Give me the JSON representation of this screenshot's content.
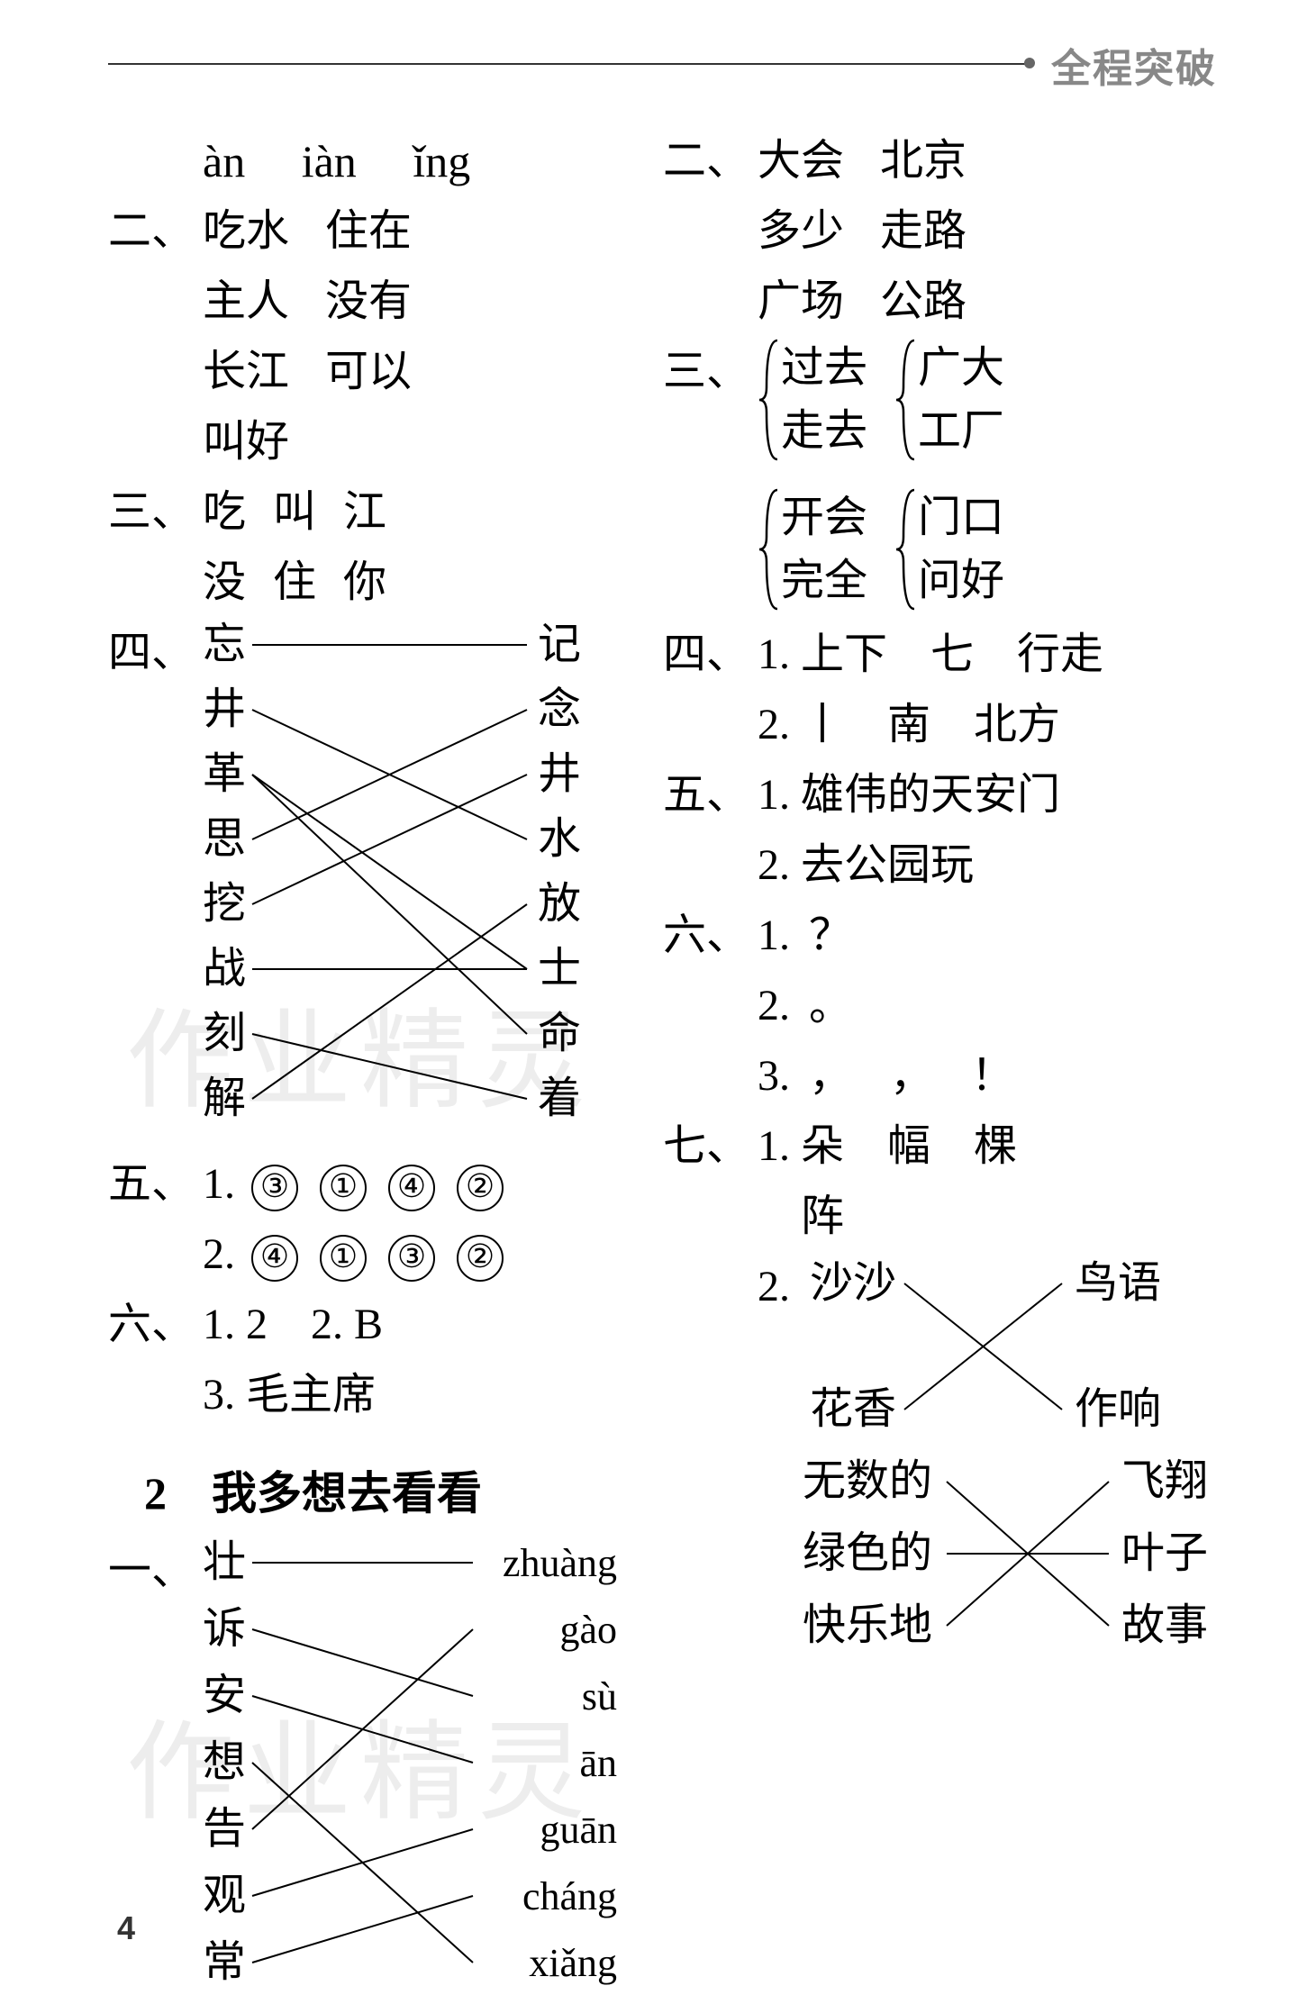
{
  "header": {
    "brand": "全程突破"
  },
  "pageNumber": "4",
  "watermark": "作业精灵",
  "left": {
    "pinyin_row": {
      "items": [
        "àn",
        "iàn",
        "ǐng"
      ]
    },
    "sec2": {
      "label": "二、",
      "pairs": [
        [
          "吃水",
          "住在"
        ],
        [
          "主人",
          "没有"
        ],
        [
          "长江",
          "可以"
        ],
        [
          "叫好",
          ""
        ]
      ]
    },
    "sec3": {
      "label": "三、",
      "rows": [
        [
          "吃",
          "叫",
          "江"
        ],
        [
          "没",
          "住",
          "你"
        ]
      ]
    },
    "sec4": {
      "label": "四、",
      "left": [
        "忘",
        "井",
        "革",
        "思",
        "挖",
        "战",
        "刻",
        "解"
      ],
      "right": [
        "记",
        "念",
        "井",
        "水",
        "放",
        "士",
        "命",
        "着"
      ],
      "edges": [
        [
          0,
          0
        ],
        [
          1,
          3
        ],
        [
          2,
          5
        ],
        [
          3,
          1
        ],
        [
          4,
          2
        ],
        [
          5,
          5
        ],
        [
          6,
          7
        ],
        [
          7,
          4
        ]
      ],
      "extra_edges": [
        [
          2,
          6
        ]
      ]
    },
    "sec5": {
      "label": "五、",
      "rows": [
        {
          "num": "1.",
          "circ": [
            "③",
            "①",
            "④",
            "②"
          ]
        },
        {
          "num": "2.",
          "circ": [
            "④",
            "①",
            "③",
            "②"
          ]
        }
      ]
    },
    "sec6": {
      "label": "六、",
      "lines": [
        "1. 2　2. B",
        "3. 毛主席"
      ]
    },
    "title": "2　我多想去看看",
    "sec1b": {
      "label": "一、",
      "left": [
        "壮",
        "诉",
        "安",
        "想",
        "告",
        "观",
        "常"
      ],
      "right": [
        "zhuàng",
        "gào",
        "sù",
        "ān",
        "guān",
        "cháng",
        "xiǎng"
      ],
      "edges": [
        [
          0,
          0
        ],
        [
          1,
          2
        ],
        [
          2,
          3
        ],
        [
          3,
          6
        ],
        [
          4,
          1
        ],
        [
          5,
          4
        ],
        [
          6,
          5
        ]
      ]
    }
  },
  "right": {
    "sec2": {
      "label": "二、",
      "pairs": [
        [
          "大会",
          "北京"
        ],
        [
          "多少",
          "走路"
        ],
        [
          "广场",
          "公路"
        ]
      ]
    },
    "sec3": {
      "label": "三、",
      "groups": [
        [
          [
            "过去",
            "走去"
          ],
          [
            "广大",
            "工厂"
          ]
        ],
        [
          [
            "开会",
            "完全"
          ],
          [
            "门口",
            "问好"
          ]
        ]
      ]
    },
    "sec4": {
      "label": "四、",
      "lines": [
        "1. 上下　七　行走",
        "2. 丨　南　北方"
      ]
    },
    "sec5": {
      "label": "五、",
      "lines": [
        "1. 雄伟的天安门",
        "2. 去公园玩"
      ]
    },
    "sec6": {
      "label": "六、",
      "rows": [
        {
          "num": "1.",
          "punct": [
            "？"
          ]
        },
        {
          "num": "2.",
          "punct": [
            "。"
          ]
        },
        {
          "num": "3.",
          "punct": [
            "，",
            "，",
            "！"
          ]
        }
      ]
    },
    "sec7": {
      "label": "七、",
      "line1a": "1. 朵　幅　棵",
      "line1b": "　阵",
      "item2num": "2.",
      "match_a": {
        "left": [
          "沙沙",
          "花香"
        ],
        "right": [
          "鸟语",
          "作响"
        ],
        "edges": [
          [
            0,
            1
          ],
          [
            1,
            0
          ]
        ]
      },
      "match_b": {
        "left": [
          "无数的",
          "绿色的",
          "快乐地"
        ],
        "right": [
          "飞翔",
          "叶子",
          "故事"
        ],
        "edges": [
          [
            0,
            2
          ],
          [
            1,
            1
          ],
          [
            2,
            0
          ]
        ]
      }
    }
  }
}
